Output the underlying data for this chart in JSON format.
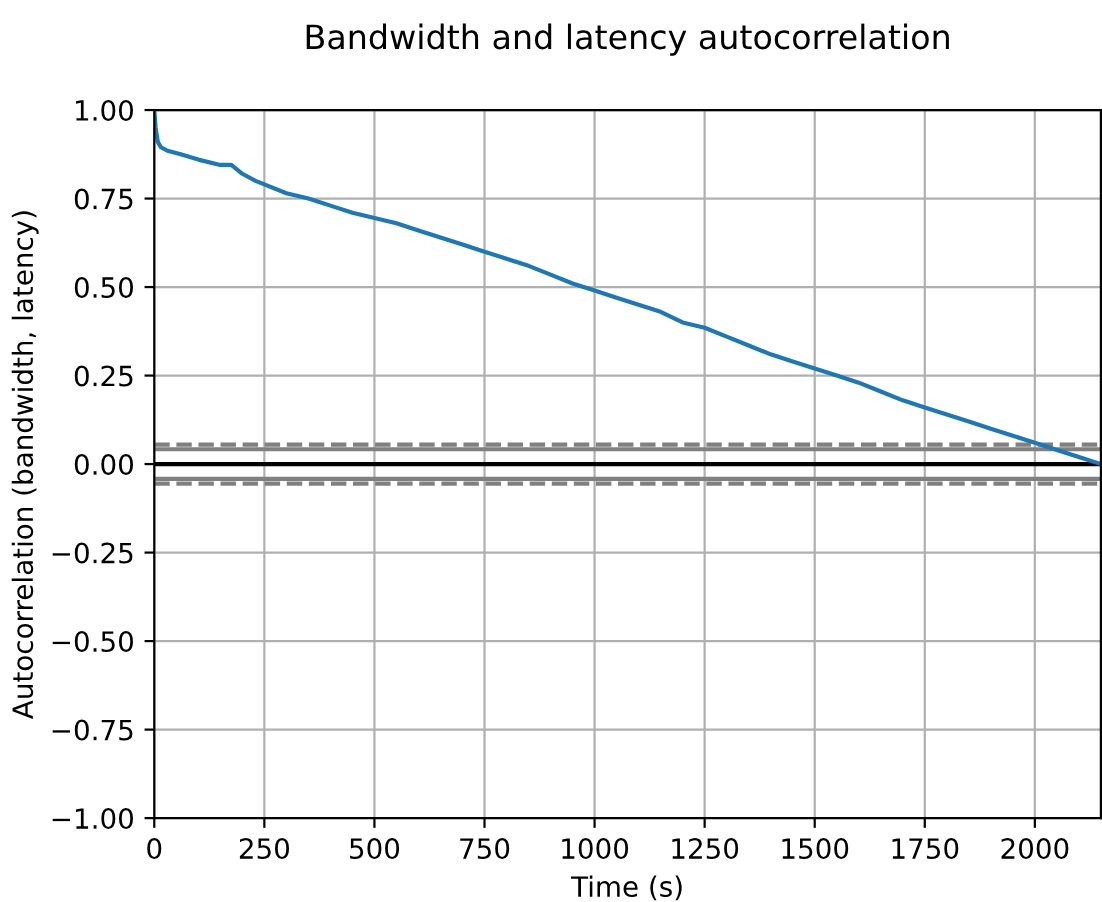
{
  "chart_data": {
    "type": "line",
    "title": "Bandwidth and latency autocorrelation",
    "xlabel": "Time (s)",
    "ylabel": "Autocorrelation (bandwidth, latency)",
    "series": [
      {
        "color": "#1f77b4",
        "x": [
          0,
          3,
          8,
          15,
          30,
          60,
          100,
          150,
          175,
          200,
          230,
          250,
          300,
          350,
          400,
          450,
          500,
          550,
          600,
          650,
          700,
          750,
          800,
          850,
          900,
          950,
          1000,
          1050,
          1100,
          1150,
          1200,
          1250,
          1300,
          1350,
          1400,
          1450,
          1500,
          1550,
          1600,
          1650,
          1700,
          1750,
          1800,
          1850,
          1900,
          1950,
          2000,
          2050,
          2100,
          2150
        ],
        "values": [
          1.0,
          0.95,
          0.91,
          0.895,
          0.885,
          0.875,
          0.86,
          0.845,
          0.845,
          0.82,
          0.8,
          0.79,
          0.765,
          0.75,
          0.73,
          0.71,
          0.695,
          0.68,
          0.66,
          0.64,
          0.62,
          0.6,
          0.58,
          0.56,
          0.535,
          0.51,
          0.49,
          0.47,
          0.45,
          0.43,
          0.4,
          0.385,
          0.36,
          0.335,
          0.31,
          0.29,
          0.27,
          0.25,
          0.23,
          0.205,
          0.18,
          0.16,
          0.14,
          0.12,
          0.1,
          0.08,
          0.06,
          0.04,
          0.02,
          0.0
        ]
      }
    ],
    "xlim": [
      0,
      2150
    ],
    "ylim": [
      -1,
      1
    ],
    "xticks": [
      0,
      250,
      500,
      750,
      1000,
      1250,
      1500,
      1750,
      2000
    ],
    "yticks": [
      {
        "value": -1,
        "label": "−1.00"
      },
      {
        "value": -0.75,
        "label": "−0.75"
      },
      {
        "value": -0.5,
        "label": "−0.50"
      },
      {
        "value": -0.25,
        "label": "−0.25"
      },
      {
        "value": 0,
        "label": "0.00"
      },
      {
        "value": 0.25,
        "label": "0.25"
      },
      {
        "value": 0.5,
        "label": "0.50"
      },
      {
        "value": 0.75,
        "label": "0.75"
      },
      {
        "value": 1,
        "label": "1.00"
      }
    ],
    "ref_lines": [
      {
        "axis": "y",
        "value": 0.042,
        "color": "#808080",
        "line_style": "solid"
      },
      {
        "axis": "y",
        "value": 0.055,
        "color": "#808080",
        "line_style": "dashed"
      },
      {
        "axis": "y",
        "value": 0,
        "color": "#000000",
        "line_style": "solid"
      },
      {
        "axis": "y",
        "value": -0.042,
        "color": "#808080",
        "line_style": "solid"
      },
      {
        "axis": "y",
        "value": -0.055,
        "color": "#808080",
        "line_style": "dashed"
      }
    ],
    "grid": true,
    "legend": false
  }
}
